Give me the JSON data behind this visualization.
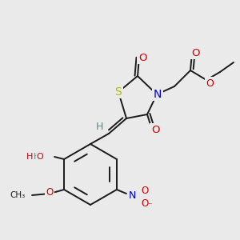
{
  "bg_color": "#eaeaea",
  "bond_color": "#1a1a1a",
  "bond_width": 1.4,
  "dbo": 0.012,
  "atom_colors": {
    "S": "#b8b800",
    "N": "#0000cc",
    "O": "#cc0000",
    "H": "#4a9090",
    "C": "#1a1a1a"
  },
  "fs": 8.5
}
